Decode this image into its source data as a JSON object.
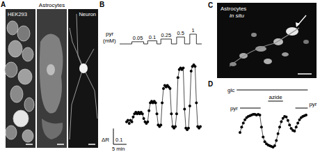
{
  "panel_labels": [
    "A",
    "B",
    "C",
    "D"
  ],
  "panel_a": {
    "title": "Astrocytes",
    "left": "HEK293",
    "right": "Neuron"
  },
  "panel_c": {
    "title": "Astrocytes",
    "subtitle": "in situ"
  },
  "chart_data": [
    {
      "type": "line",
      "marker": "circle",
      "tick_labels": false,
      "x": [
        0,
        0.5,
        1,
        1.5,
        2,
        2.5,
        3,
        3.5,
        4,
        4.5,
        5,
        5.5,
        6,
        6.5,
        7,
        7.5,
        8,
        8.5,
        9,
        9.5,
        10,
        10.5,
        11,
        11.5,
        12,
        12.5,
        13,
        13.5,
        14,
        14.5,
        15,
        15.5,
        16,
        16.5,
        17,
        17.5,
        18,
        18.5,
        19,
        19.5,
        20,
        20.5,
        21,
        21.5,
        22,
        22.5,
        23,
        23.5,
        24,
        24.5,
        25,
        25.5,
        26,
        26.5,
        27,
        27.5,
        28
      ],
      "values": [
        0.0,
        0.01,
        -0.01,
        0.01,
        0.0,
        0.03,
        0.05,
        0.06,
        0.05,
        0.06,
        0.05,
        0.06,
        0.05,
        0.02,
        0.0,
        -0.01,
        0.0,
        0.07,
        0.12,
        0.13,
        0.12,
        0.13,
        0.12,
        0.05,
        -0.02,
        -0.03,
        -0.02,
        0.12,
        0.21,
        0.23,
        0.22,
        0.23,
        0.22,
        0.21,
        0.05,
        -0.03,
        -0.04,
        -0.03,
        0.05,
        0.28,
        0.33,
        0.34,
        0.33,
        0.34,
        0.08,
        -0.04,
        -0.05,
        -0.04,
        0.1,
        0.32,
        0.35,
        0.36,
        0.35,
        0.12,
        -0.03,
        -0.04,
        -0.03
      ],
      "stimulus": {
        "label": "pyr",
        "unit": "(mM)",
        "start": [
          2,
          8,
          13,
          19,
          24
        ],
        "end": [
          6.5,
          11.5,
          17,
          22,
          26.5
        ],
        "values": [
          0.05,
          0.1,
          0.25,
          0.5,
          1
        ]
      },
      "scale_bars": {
        "y": {
          "title": "ΔR",
          "value": 0.1
        },
        "x": {
          "value": 5,
          "label": "5 min"
        }
      }
    },
    {
      "type": "line",
      "marker": "circle",
      "tick_labels": false,
      "x": [
        0,
        1,
        2,
        3,
        4,
        5,
        6,
        7,
        8,
        9,
        10,
        11,
        12,
        13,
        14,
        15,
        16,
        17,
        18,
        19,
        20,
        21,
        22,
        23,
        24,
        25,
        26,
        27,
        28,
        29,
        30,
        31,
        32,
        33,
        34,
        35,
        36,
        37,
        38,
        39,
        40
      ],
      "values": [
        0.22,
        0.3,
        0.36,
        0.41,
        0.44,
        0.46,
        0.47,
        0.48,
        0.49,
        0.49,
        0.48,
        0.49,
        0.48,
        0.3,
        0.15,
        0.08,
        0.05,
        0.03,
        0.02,
        0.01,
        0.0,
        0.02,
        0.1,
        0.2,
        0.3,
        0.38,
        0.43,
        0.46,
        0.45,
        0.4,
        0.33,
        0.28,
        0.25,
        0.24,
        0.3,
        0.36,
        0.41,
        0.44,
        0.46,
        0.47,
        0.48
      ],
      "bars": [
        {
          "label": "glc",
          "start": -2,
          "end": 41
        },
        {
          "label": "azide",
          "start": 17,
          "end": 26
        },
        {
          "label": "pyr",
          "start": 0,
          "end": 12.5
        },
        {
          "label": "pyr",
          "start": 33.5,
          "end": 41
        }
      ]
    }
  ]
}
